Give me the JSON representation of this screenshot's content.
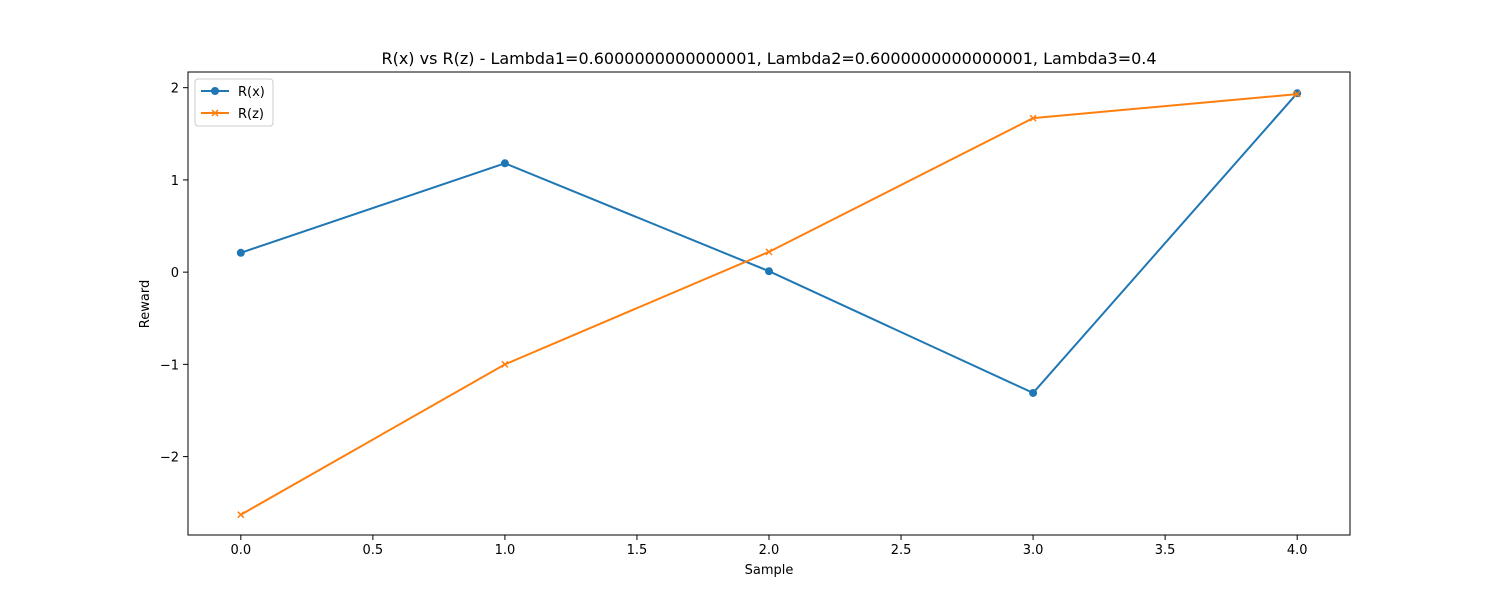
{
  "chart_data": {
    "type": "line",
    "title": "R(x) vs R(z) - Lambda1=0.6000000000000001, Lambda2=0.6000000000000001, Lambda3=0.4",
    "xlabel": "Sample",
    "ylabel": "Reward",
    "x": [
      0,
      1,
      2,
      3,
      4
    ],
    "xlim": [
      -0.2,
      4.2
    ],
    "ylim": [
      -2.85,
      2.17
    ],
    "xticks": [
      0.0,
      0.5,
      1.0,
      1.5,
      2.0,
      2.5,
      3.0,
      3.5,
      4.0
    ],
    "xtick_labels": [
      "0.0",
      "0.5",
      "1.0",
      "1.5",
      "2.0",
      "2.5",
      "3.0",
      "3.5",
      "4.0"
    ],
    "yticks": [
      -2,
      -1,
      0,
      1,
      2
    ],
    "ytick_labels": [
      "−2",
      "−1",
      "0",
      "1",
      "2"
    ],
    "grid": false,
    "legend_position": "top-left",
    "series": [
      {
        "name": "R(x)",
        "values": [
          0.21,
          1.18,
          0.01,
          -1.31,
          1.94
        ],
        "color": "#1f77b4",
        "marker": "circle"
      },
      {
        "name": "R(z)",
        "values": [
          -2.63,
          -1.0,
          0.22,
          1.67,
          1.93
        ],
        "color": "#ff7f0e",
        "marker": "x"
      }
    ]
  }
}
